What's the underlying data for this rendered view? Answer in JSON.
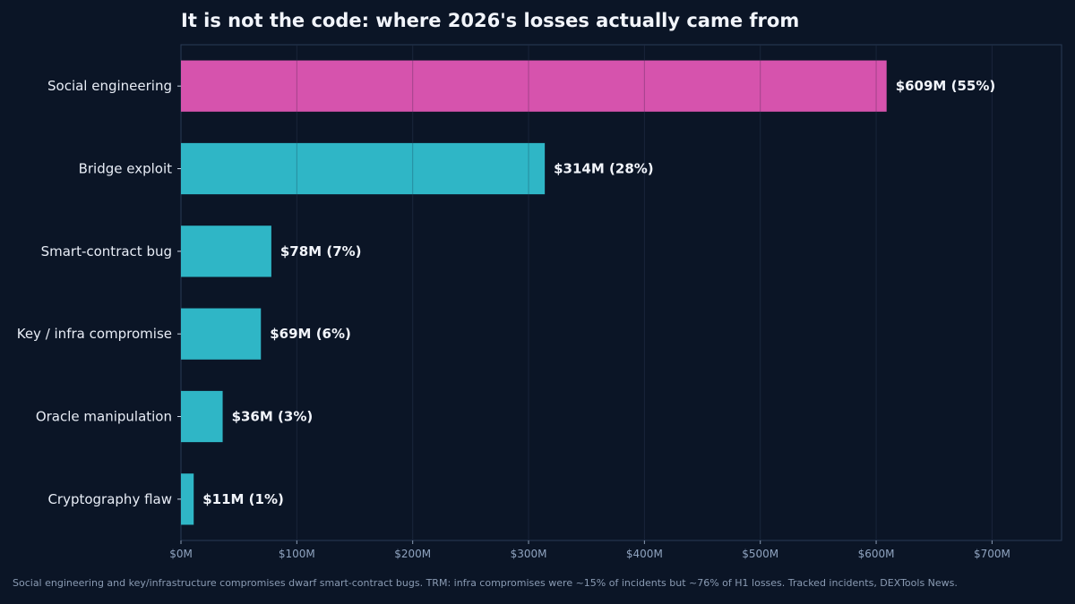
{
  "chart_data": {
    "type": "bar",
    "orientation": "horizontal",
    "title": "It is not the code: where 2026's losses actually came from",
    "xlabel": "",
    "ylabel": "",
    "xlim": [
      0,
      760
    ],
    "x_ticks": [
      0,
      100,
      200,
      300,
      400,
      500,
      600,
      700
    ],
    "x_tick_labels": [
      "$0M",
      "$100M",
      "$200M",
      "$300M",
      "$400M",
      "$500M",
      "$600M",
      "$700M"
    ],
    "categories": [
      "Social engineering",
      "Bridge exploit",
      "Smart-contract bug",
      "Key / infra compromise",
      "Oracle manipulation",
      "Cryptography flaw"
    ],
    "values": [
      609,
      314,
      78,
      69,
      36,
      11
    ],
    "data_labels": [
      "$609M (55%)",
      "$314M (28%)",
      "$78M (7%)",
      "$69M (6%)",
      "$36M (3%)",
      "$11M (1%)"
    ],
    "grid": "vertical",
    "legend": "none",
    "highlight_index": 0,
    "colors": {
      "highlight": "#d653ad",
      "bar": "#2fb6c6",
      "background": "#0b1526",
      "grid": "#1e2b40",
      "axis": "#2a3a55"
    }
  },
  "footnote": "Social engineering and key/infrastructure compromises dwarf smart-contract bugs. TRM: infra compromises were ~15% of incidents but ~76% of H1 losses. Tracked incidents, DEXTools News."
}
